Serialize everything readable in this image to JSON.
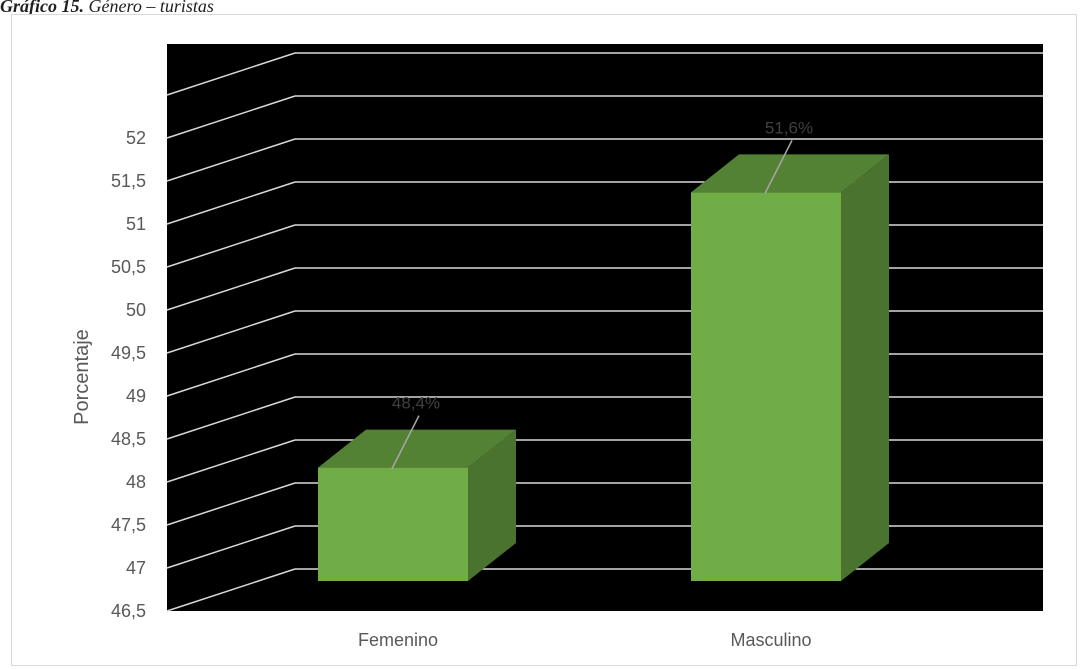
{
  "caption": {
    "prefix": "Gráfico 15.",
    "text": " Género – turistas"
  },
  "chart_data": {
    "type": "bar",
    "style": "3d-column",
    "categories": [
      "Femenino",
      "Masculino"
    ],
    "values": [
      48.4,
      51.6
    ],
    "data_labels": [
      "48,4%",
      "51,6%"
    ],
    "title": "",
    "xlabel": "",
    "ylabel": "Porcentaje",
    "ylim": [
      46.5,
      52.0
    ],
    "yticks": [
      "46,5",
      "47",
      "47,5",
      "48",
      "48,5",
      "49",
      "49,5",
      "50",
      "50,5",
      "51",
      "51,5",
      "52"
    ],
    "grid": true,
    "legend": "none",
    "colors": {
      "plot_background": "#000000",
      "bar_front": "#70ad47",
      "bar_side": "#4a732f",
      "bar_top": "#548235",
      "gridline": "#d9d9d9",
      "text": "#595959"
    }
  }
}
